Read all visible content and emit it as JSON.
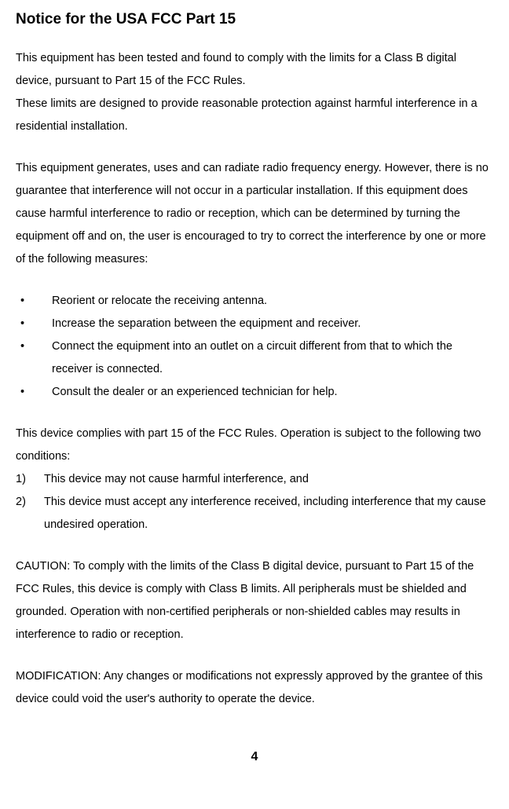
{
  "title": "Notice for the USA FCC Part 15",
  "p1a": "This equipment has been tested and found to comply with the limits for a Class B digital device, pursuant to Part 15 of the FCC Rules.",
  "p1b": "These limits are designed to provide reasonable protection against harmful interference in a residential installation.",
  "p2": "This equipment generates, uses and can radiate radio frequency energy. However, there is no guarantee that interference will not occur in a particular installation. If this equipment does cause harmful interference to radio or reception, which can be determined by turning the equipment off and on, the user is encouraged to try to correct the interference by one or more of the following measures:",
  "bullets": [
    "Reorient or relocate the receiving antenna.",
    "Increase the separation between the equipment and receiver.",
    "Connect the equipment into an outlet on a circuit different from that to which the receiver is connected.",
    "Consult the dealer or an experienced technician for help."
  ],
  "p3": "This device complies with part 15 of the FCC Rules. Operation is subject to the following two conditions:",
  "numbered": [
    "This device may not cause harmful interference, and",
    "This device must accept any interference received, including interference that my cause undesired operation."
  ],
  "p4": "CAUTION: To comply with the limits of the Class B digital device, pursuant to Part 15 of the FCC Rules, this device is comply with Class B limits. All peripherals must be shielded and grounded. Operation with non-certified peripherals or non-shielded cables may results in interference to radio or reception.",
  "p5": "MODIFICATION: Any changes or modifications not expressly approved by the grantee of this device could void the user's authority to operate the device.",
  "page_number": "4",
  "colors": {
    "text": "#000000",
    "background": "#ffffff"
  },
  "fonts": {
    "body_size_pt": 11,
    "title_size_pt": 14,
    "family": "Arial"
  }
}
